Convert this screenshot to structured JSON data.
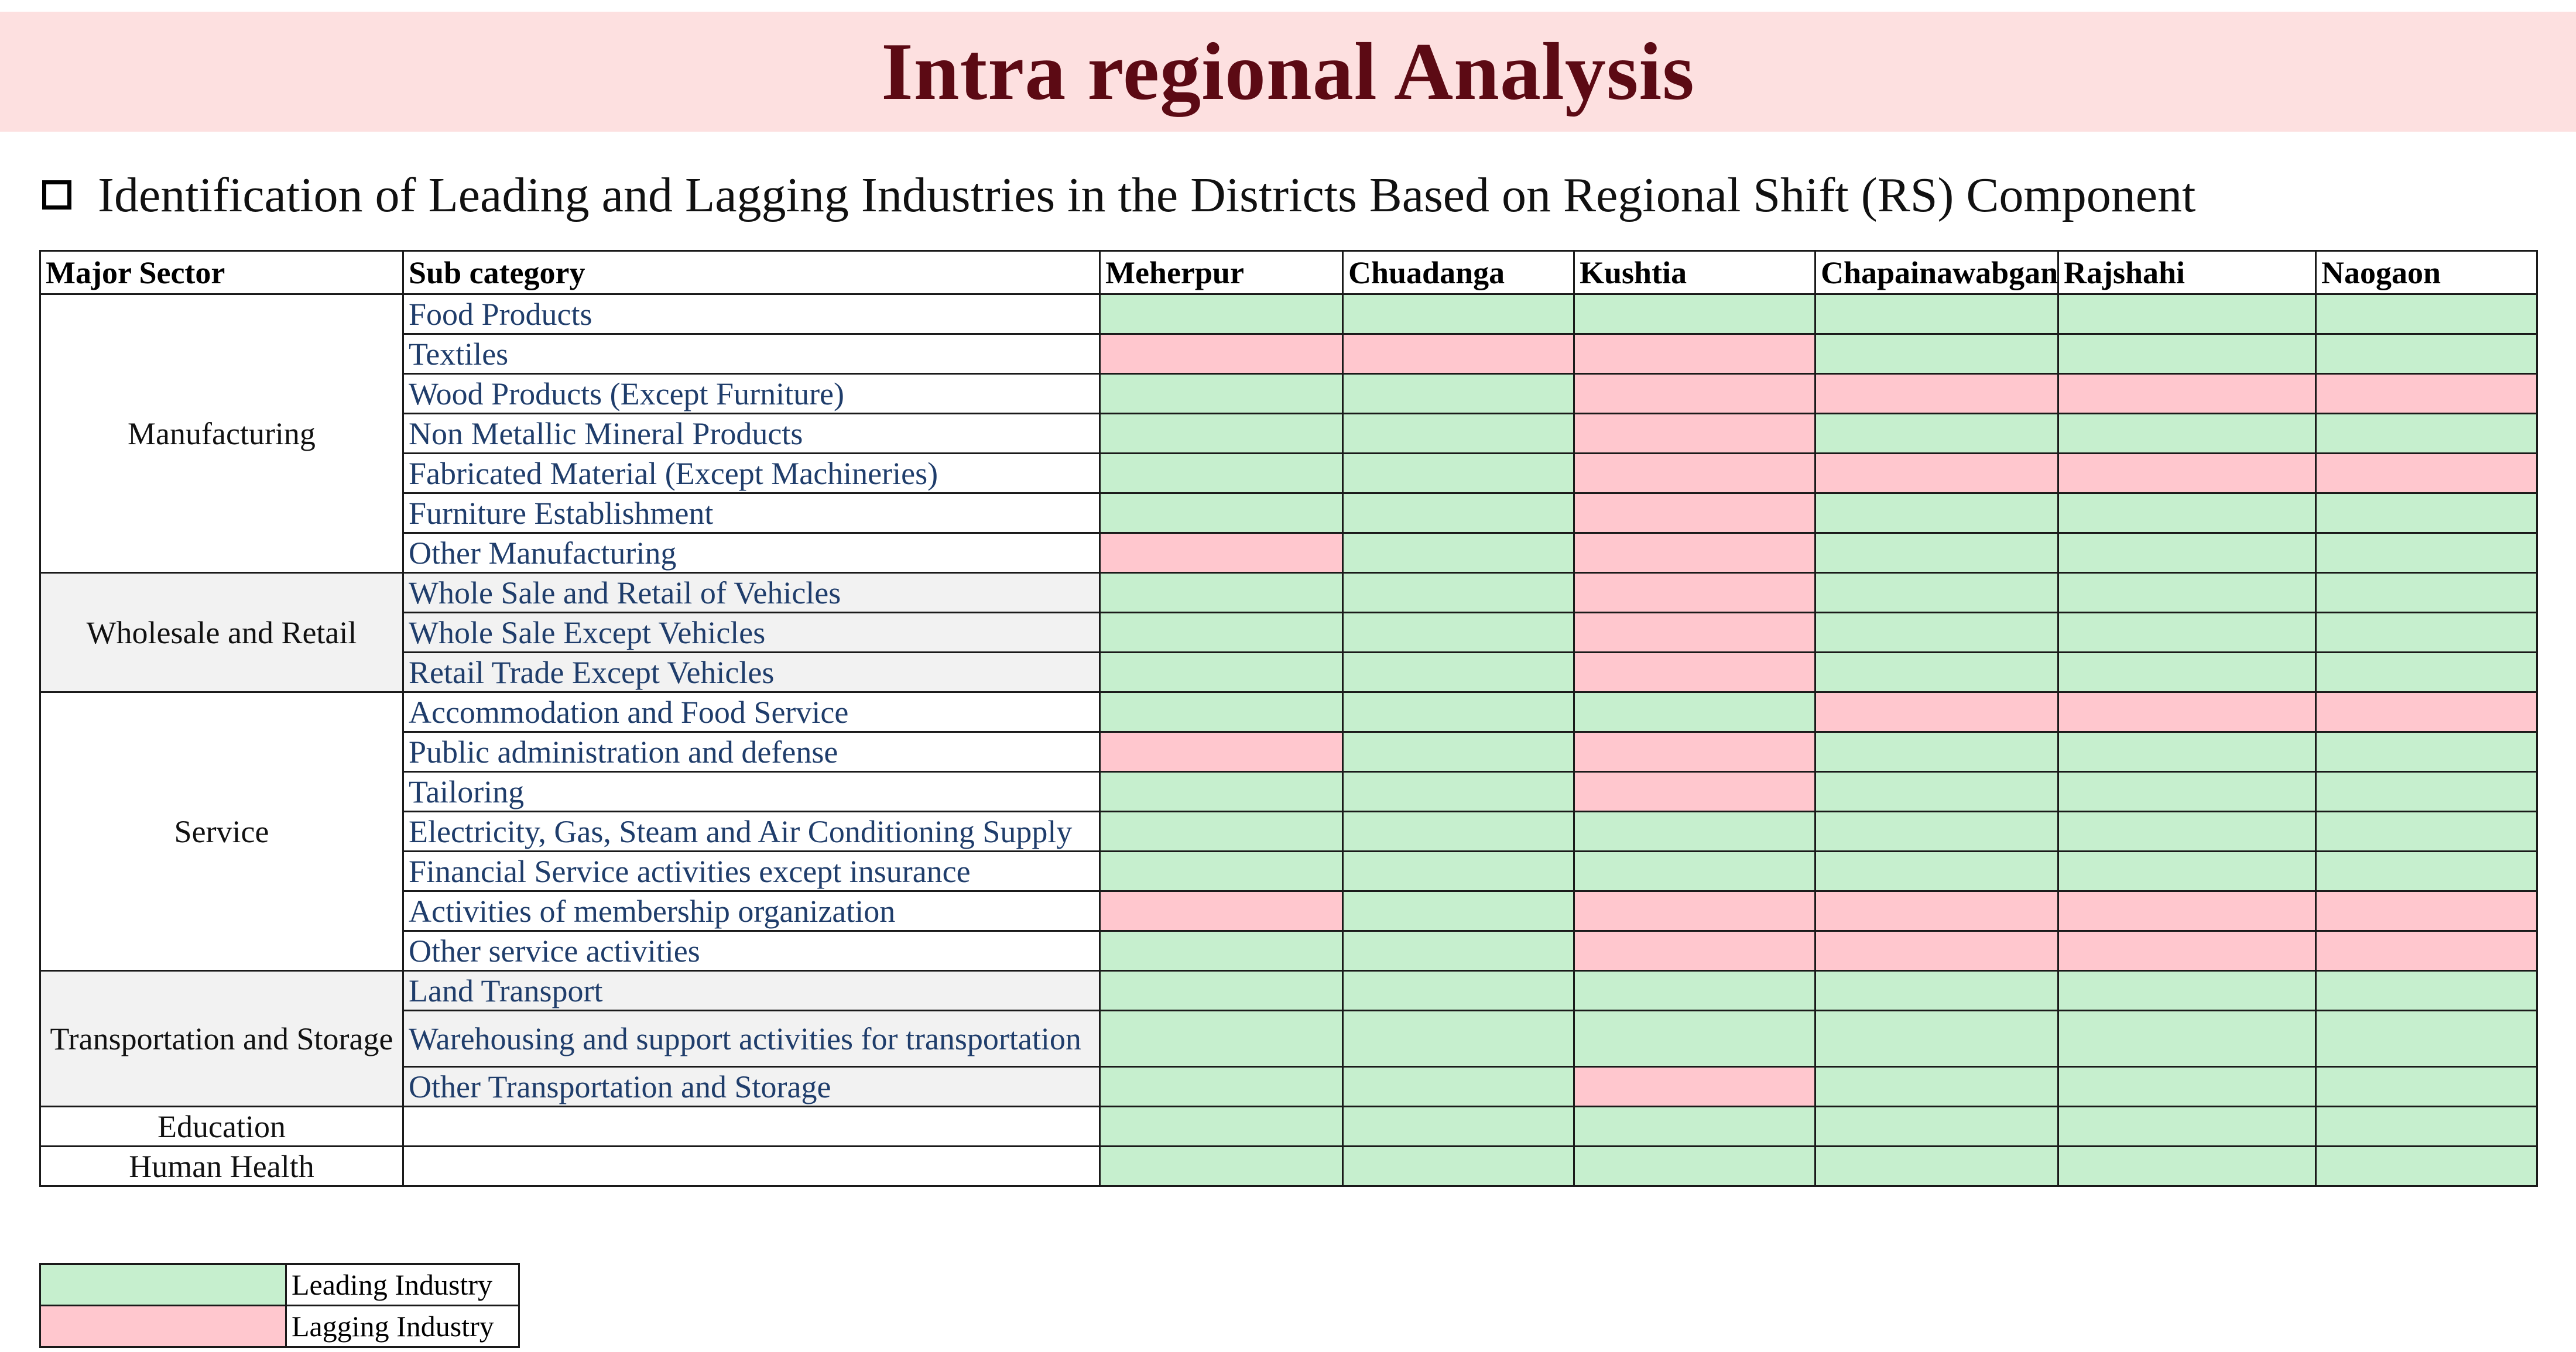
{
  "title": "Intra regional Analysis",
  "subtitle": "Identification of Leading and Lagging Industries in the Districts Based on Regional Shift (RS) Component",
  "colors": {
    "leading": "#c6efce",
    "lagging": "#ffc7ce",
    "title_bg": "#fde0e0",
    "title_text": "#5c0a14",
    "subcategory_text": "#1f3d6b"
  },
  "table": {
    "headers": [
      "Major Sector",
      "Sub category",
      "Meherpur",
      "Chuadanga",
      "Kushtia",
      "Chapainawabganj",
      "Rajshahi",
      "Naogaon"
    ],
    "groups": [
      {
        "sector": "Manufacturing",
        "shaded": false,
        "rows": [
          {
            "sub": "Food Products",
            "status": [
              "L",
              "L",
              "L",
              "L",
              "L",
              "L"
            ]
          },
          {
            "sub": "Textiles",
            "status": [
              "G",
              "G",
              "G",
              "L",
              "L",
              "L"
            ]
          },
          {
            "sub": "Wood Products (Except Furniture)",
            "status": [
              "L",
              "L",
              "G",
              "G",
              "G",
              "G"
            ]
          },
          {
            "sub": "Non Metallic Mineral Products",
            "status": [
              "L",
              "L",
              "G",
              "L",
              "L",
              "L"
            ]
          },
          {
            "sub": "Fabricated Material (Except Machineries)",
            "status": [
              "L",
              "L",
              "G",
              "G",
              "G",
              "G"
            ]
          },
          {
            "sub": "Furniture Establishment",
            "status": [
              "L",
              "L",
              "G",
              "L",
              "L",
              "L"
            ]
          },
          {
            "sub": "Other Manufacturing",
            "status": [
              "G",
              "L",
              "G",
              "L",
              "L",
              "L"
            ]
          }
        ]
      },
      {
        "sector": "Wholesale and Retail",
        "shaded": true,
        "rows": [
          {
            "sub": "Whole Sale and Retail of Vehicles",
            "status": [
              "L",
              "L",
              "G",
              "L",
              "L",
              "L"
            ]
          },
          {
            "sub": "Whole Sale Except Vehicles",
            "status": [
              "L",
              "L",
              "G",
              "L",
              "L",
              "L"
            ]
          },
          {
            "sub": "Retail Trade Except Vehicles",
            "status": [
              "L",
              "L",
              "G",
              "L",
              "L",
              "L"
            ]
          }
        ]
      },
      {
        "sector": "Service",
        "shaded": false,
        "rows": [
          {
            "sub": "Accommodation and Food Service",
            "status": [
              "L",
              "L",
              "L",
              "G",
              "G",
              "G"
            ]
          },
          {
            "sub": "Public administration and defense",
            "status": [
              "G",
              "L",
              "G",
              "L",
              "L",
              "L"
            ]
          },
          {
            "sub": "Tailoring",
            "status": [
              "L",
              "L",
              "G",
              "L",
              "L",
              "L"
            ]
          },
          {
            "sub": "Electricity, Gas, Steam and Air Conditioning Supply",
            "status": [
              "L",
              "L",
              "L",
              "L",
              "L",
              "L"
            ]
          },
          {
            "sub": "Financial Service activities except insurance",
            "status": [
              "L",
              "L",
              "L",
              "L",
              "L",
              "L"
            ]
          },
          {
            "sub": "Activities of membership organization",
            "status": [
              "G",
              "L",
              "G",
              "G",
              "G",
              "G"
            ]
          },
          {
            "sub": "Other service activities",
            "status": [
              "L",
              "L",
              "G",
              "G",
              "G",
              "G"
            ]
          }
        ]
      },
      {
        "sector": "Transportation and Storage",
        "shaded": true,
        "rows": [
          {
            "sub": "Land Transport",
            "status": [
              "L",
              "L",
              "L",
              "L",
              "L",
              "L"
            ]
          },
          {
            "sub": "Warehousing and support activities for transportation",
            "status": [
              "L",
              "L",
              "L",
              "L",
              "L",
              "L"
            ],
            "tall": true
          },
          {
            "sub": "Other Transportation and Storage",
            "status": [
              "L",
              "L",
              "G",
              "L",
              "L",
              "L"
            ]
          }
        ]
      },
      {
        "sector": "Education",
        "shaded": false,
        "rows": [
          {
            "sub": "",
            "status": [
              "L",
              "L",
              "L",
              "L",
              "L",
              "L"
            ]
          }
        ]
      },
      {
        "sector": "Human Health",
        "shaded": false,
        "rows": [
          {
            "sub": "",
            "status": [
              "L",
              "L",
              "L",
              "L",
              "L",
              "L"
            ]
          }
        ]
      }
    ]
  },
  "legend": [
    {
      "key": "L",
      "label": "Leading Industry"
    },
    {
      "key": "G",
      "label": "Lagging Industry"
    }
  ]
}
